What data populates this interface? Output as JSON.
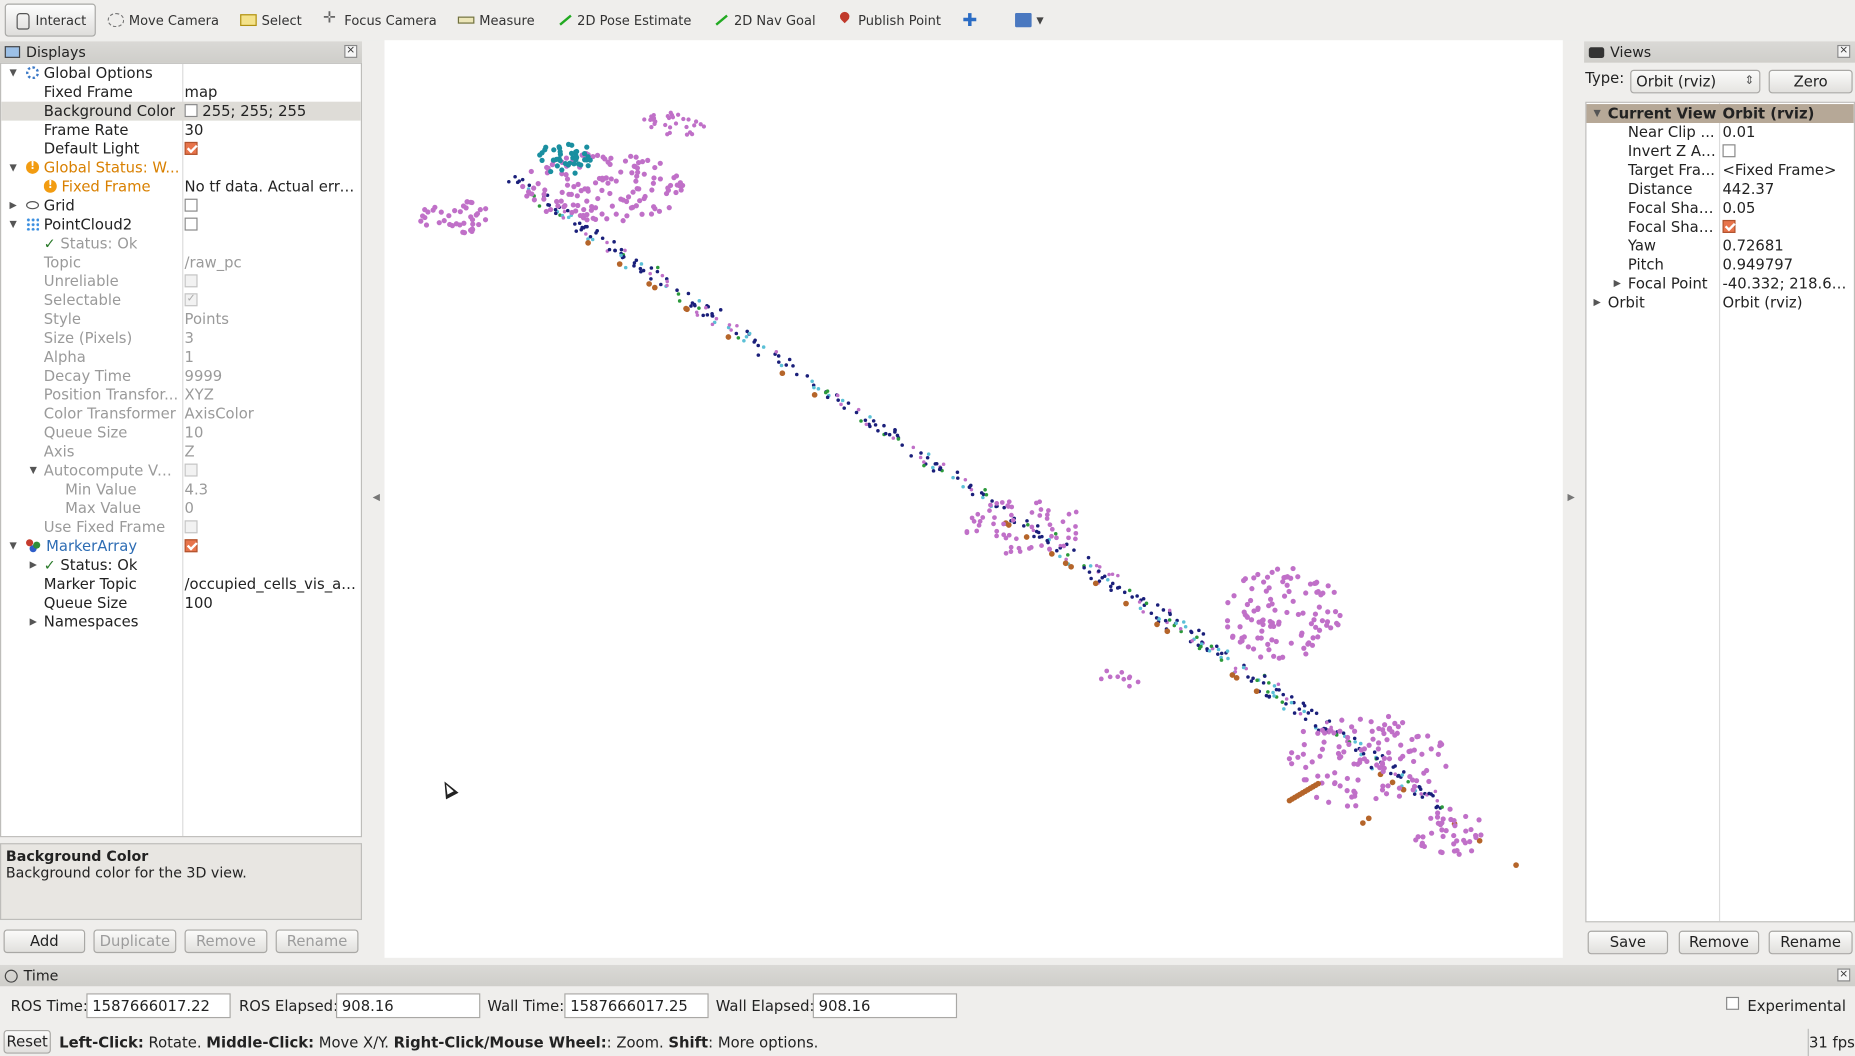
{
  "toolbar": {
    "items": [
      {
        "label": "Interact",
        "icon": "hand-icon",
        "active": true
      },
      {
        "label": "Move Camera",
        "icon": "move-camera-icon"
      },
      {
        "label": "Select",
        "icon": "select-icon"
      },
      {
        "label": "Focus Camera",
        "icon": "focus-camera-icon"
      },
      {
        "label": "Measure",
        "icon": "measure-icon"
      },
      {
        "label": "2D Pose Estimate",
        "icon": "arrow-green-icon"
      },
      {
        "label": "2D Nav Goal",
        "icon": "arrow-green-icon"
      },
      {
        "label": "Publish Point",
        "icon": "map-pin-icon"
      }
    ]
  },
  "displays": {
    "title": "Displays",
    "rows": {
      "global_options": "Global Options",
      "fixed_frame": {
        "label": "Fixed Frame",
        "value": "map"
      },
      "background_color": {
        "label": "Background Color",
        "value": "255; 255; 255"
      },
      "frame_rate": {
        "label": "Frame Rate",
        "value": "30"
      },
      "default_light": {
        "label": "Default Light"
      },
      "global_status": "Global Status: W...",
      "status_fixed_frame": {
        "label": "Fixed Frame",
        "value": "No tf data.  Actual erro..."
      },
      "grid": "Grid",
      "pointcloud2": "PointCloud2",
      "pc_status": "Status: Ok",
      "topic": {
        "label": "Topic",
        "value": "/raw_pc"
      },
      "unreliable": "Unreliable",
      "selectable": "Selectable",
      "style": {
        "label": "Style",
        "value": "Points"
      },
      "size": {
        "label": "Size (Pixels)",
        "value": "3"
      },
      "alpha": {
        "label": "Alpha",
        "value": "1"
      },
      "decay": {
        "label": "Decay Time",
        "value": "9999"
      },
      "position_transformer": {
        "label": "Position Transfor...",
        "value": "XYZ"
      },
      "color_transformer": {
        "label": "Color Transformer",
        "value": "AxisColor"
      },
      "queue_size": {
        "label": "Queue Size",
        "value": "10"
      },
      "axis": {
        "label": "Axis",
        "value": "Z"
      },
      "autocompute": "Autocompute Val...",
      "min_value": {
        "label": "Min Value",
        "value": "4.3"
      },
      "max_value": {
        "label": "Max Value",
        "value": "0"
      },
      "use_fixed_frame": "Use Fixed Frame",
      "marker_array": "MarkerArray",
      "ma_status": "Status: Ok",
      "marker_topic": {
        "label": "Marker Topic",
        "value": "/occupied_cells_vis_array"
      },
      "ma_queue_size": {
        "label": "Queue Size",
        "value": "100"
      },
      "namespaces": "Namespaces"
    },
    "description": {
      "title": "Background Color",
      "text": "Background color for the 3D view."
    },
    "buttons": {
      "add": "Add",
      "duplicate": "Duplicate",
      "remove": "Remove",
      "rename": "Rename"
    }
  },
  "views": {
    "title": "Views",
    "type_label": "Type:",
    "type_value": "Orbit (rviz)",
    "zero": "Zero",
    "rows": {
      "current_view": {
        "label": "Current View",
        "value": "Orbit (rviz)"
      },
      "near_clip": {
        "label": "Near Clip ...",
        "value": "0.01"
      },
      "invert_z": {
        "label": "Invert Z Axis"
      },
      "target_frame": {
        "label": "Target Fra...",
        "value": "<Fixed Frame>"
      },
      "distance": {
        "label": "Distance",
        "value": "442.37"
      },
      "focal_shape_size": {
        "label": "Focal Shap...",
        "value": "0.05"
      },
      "focal_shape_fixed": {
        "label": "Focal Shap..."
      },
      "yaw": {
        "label": "Yaw",
        "value": "0.72681"
      },
      "pitch": {
        "label": "Pitch",
        "value": "0.949797"
      },
      "focal_point": {
        "label": "Focal Point",
        "value": "-40.332; 218.61; ..."
      },
      "orbit": {
        "label": "Orbit",
        "value": "Orbit (rviz)"
      }
    },
    "buttons": {
      "save": "Save",
      "remove": "Remove",
      "rename": "Rename"
    }
  },
  "time": {
    "title": "Time",
    "ros_time_label": "ROS Time:",
    "ros_time": "1587666017.22",
    "ros_elapsed_label": "ROS Elapsed:",
    "ros_elapsed": "908.16",
    "wall_time_label": "Wall Time:",
    "wall_time": "1587666017.25",
    "wall_elapsed_label": "Wall Elapsed:",
    "wall_elapsed": "908.16",
    "experimental": "Experimental"
  },
  "status": {
    "reset": "Reset",
    "left_click": "Left-Click:",
    "left_click_text": " Rotate. ",
    "middle_click": "Middle-Click:",
    "middle_click_text": " Move X/Y. ",
    "right_click": "Right-Click/Mouse Wheel:",
    "right_click_text": ": Zoom. ",
    "shift": "Shift",
    "shift_text": ": More options.",
    "fps": "31 fps"
  },
  "pointcloud_colors": {
    "violet": "#c070c8",
    "navy": "#1a1f7a",
    "teal": "#1a8fa0",
    "brown": "#b5652a",
    "green": "#2c9a3c",
    "cyan": "#5bc0d6"
  }
}
